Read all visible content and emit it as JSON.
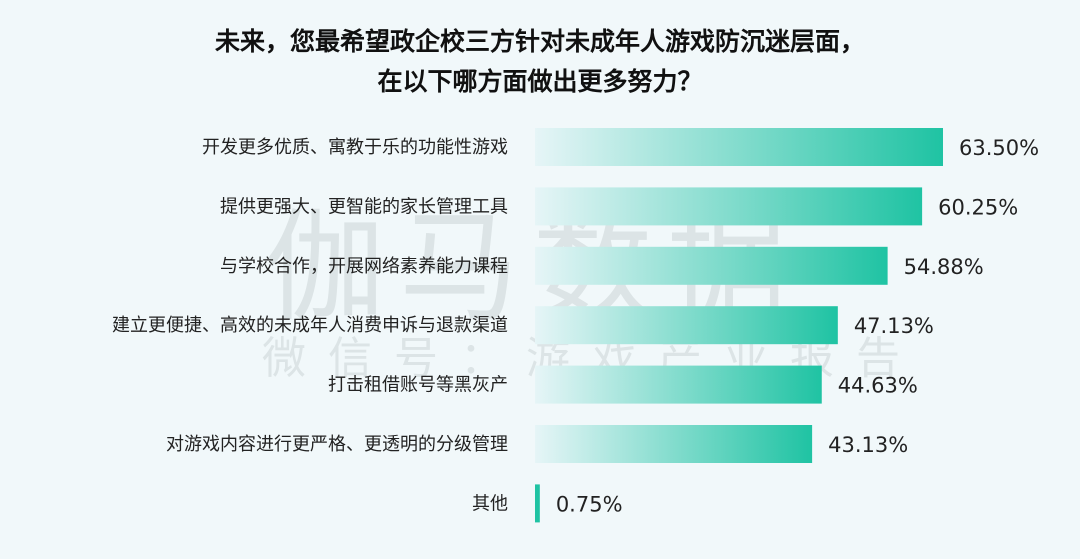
{
  "watermark": {
    "logo": "伽马数据",
    "sub": "微信号：游戏产业报告"
  },
  "chart_data": {
    "type": "bar",
    "orientation": "horizontal",
    "title_lines": [
      "未来，您最希望政企校三方针对未成年人游戏防沉迷层面，",
      "在以下哪方面做出更多努力？"
    ],
    "categories": [
      "开发更多优质、寓教于乐的功能性游戏",
      "提供更强大、更智能的家长管理工具",
      "与学校合作，开展网络素养能力课程",
      "建立更便捷、高效的未成年人消费申诉与退款渠道",
      "打击租借账号等黑灰产",
      "对游戏内容进行更严格、更透明的分级管理",
      "其他"
    ],
    "values": [
      63.5,
      60.25,
      54.88,
      47.13,
      44.63,
      43.13,
      0.75
    ],
    "value_labels": [
      "63.50%",
      "60.25%",
      "54.88%",
      "47.13%",
      "44.63%",
      "43.13%",
      "0.75%"
    ],
    "unit": "%",
    "grid": false,
    "legend": "none",
    "colors": {
      "bar_start": "#e6f5f7",
      "bar_end": "#1fc3a3"
    }
  }
}
